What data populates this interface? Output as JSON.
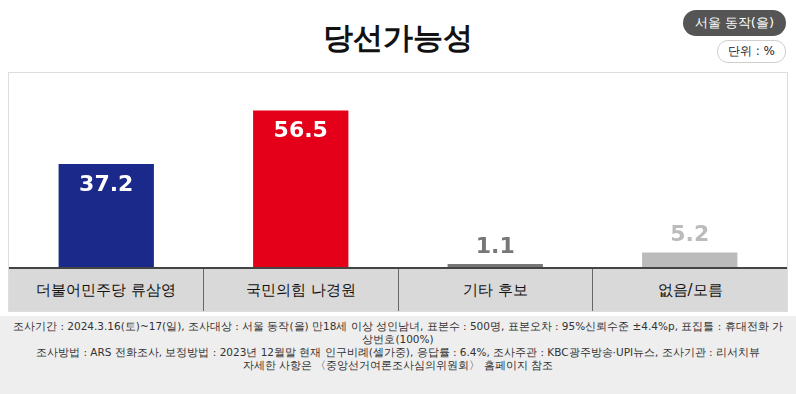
{
  "chart_data": {
    "type": "bar",
    "title": "당선가능성",
    "region": "서울 동작(을)",
    "unit": "단위 : %",
    "categories": [
      "더불어민주당 류삼영",
      "국민의힘 나경원",
      "기타 후보",
      "없음/모름"
    ],
    "values": [
      37.2,
      56.5,
      1.1,
      5.2
    ],
    "colors": [
      "#1b2a8a",
      "#e50019",
      "#777777",
      "#bbbbbb"
    ],
    "ylim": [
      0,
      70
    ],
    "grid": false,
    "tick_labels": false,
    "data_labels": true,
    "footnote": [
      "조사기간 : 2024.3.16(토)~17(일), 조사대상 : 서울 동작(을) 만18세 이상 성인남녀, 표본수 : 500명, 표본오차 : 95%신뢰수준 ±4.4%p, 표집틀 : 휴대전화 가상번호(100%)",
      "조사방법 : ARS 전화조사, 보정방법 : 2023년 12월말 현재 인구비례(셀가중), 응답률 : 6.4%, 조사주관 : KBC광주방송·UPI뉴스, 조사기관 : 리서치뷰",
      "자세한 사항은 〈중앙선거여론조사심의위원회〉 홈페이지 참조"
    ]
  }
}
